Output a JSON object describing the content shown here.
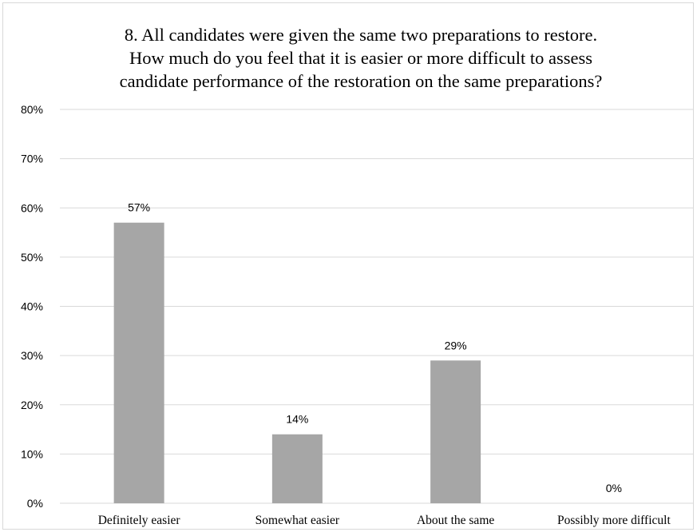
{
  "chart_data": {
    "type": "bar",
    "title_lines": [
      "8. All candidates were given the same two preparations to restore.",
      "How much do you feel that it is easier or more difficult to assess",
      "candidate performance of the restoration on the same preparations?"
    ],
    "categories": [
      "Definitely easier",
      "Somewhat easier",
      "About the same",
      "Possibly more difficult"
    ],
    "values": [
      57,
      14,
      29,
      0
    ],
    "data_labels": [
      "57%",
      "14%",
      "29%",
      "0%"
    ],
    "y_ticks": [
      "0%",
      "10%",
      "20%",
      "30%",
      "40%",
      "50%",
      "60%",
      "70%",
      "80%"
    ],
    "ylim": [
      0,
      80
    ],
    "y_unit": "%",
    "grid": true,
    "legend": "none",
    "bar_color": "#a6a6a6",
    "grid_color": "#d9d9d9"
  }
}
